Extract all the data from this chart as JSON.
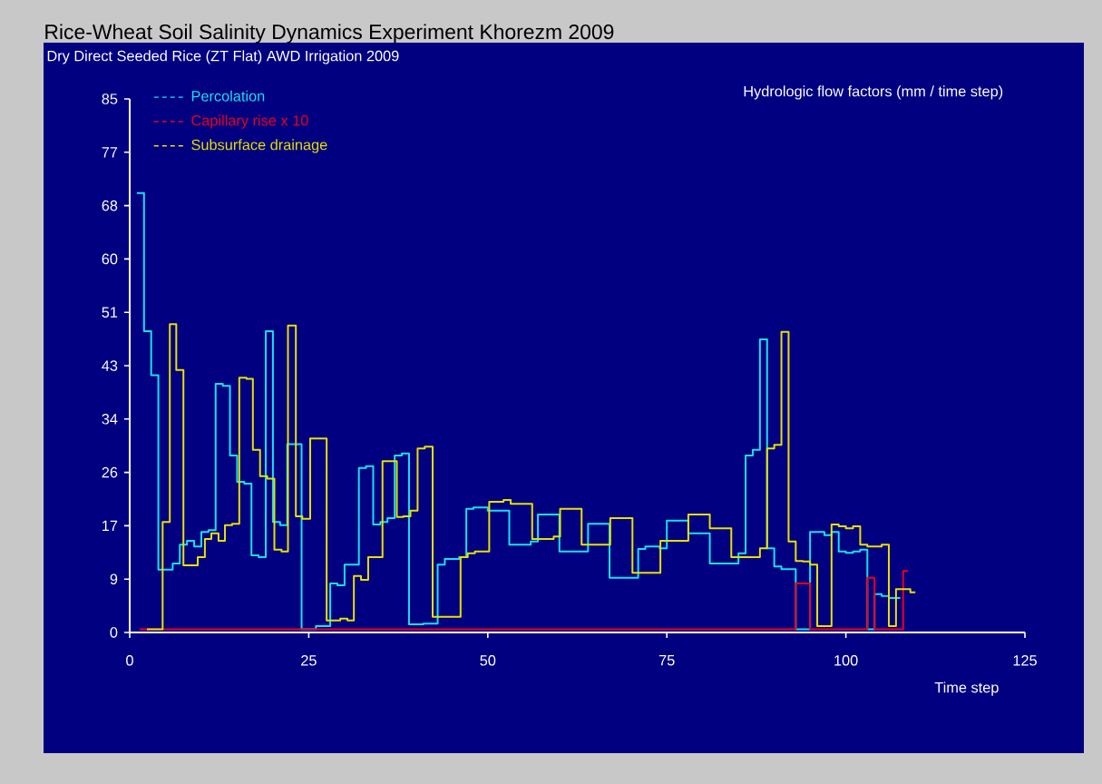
{
  "chart_data": {
    "type": "step",
    "title": "Rice-Wheat Soil Salinity Dynamics Experiment Khorezm 2009",
    "subtitle": "Dry Direct Seeded Rice (ZT Flat) AWD Irrigation 2009",
    "xlabel": "Time step",
    "ylabel": "Hydrologic flow factors (mm / time step)",
    "xlim": [
      0,
      125
    ],
    "xticks": [
      0,
      25,
      50,
      75,
      100,
      125
    ],
    "ylim": [
      0,
      85
    ],
    "yticks": [
      0,
      {
        "value": 8.5,
        "label": "9"
      },
      17,
      {
        "value": 25.5,
        "label": "26"
      },
      34,
      {
        "value": 42.5,
        "label": "43"
      },
      51,
      {
        "value": 59.5,
        "label": "60"
      },
      68,
      {
        "value": 76.5,
        "label": "77"
      },
      85
    ],
    "grid": false,
    "legend": "top left",
    "marker": "none",
    "line_style": "solid",
    "series": [
      {
        "name": "Percolation",
        "color": "#18e0f0",
        "x": [
          1,
          2,
          3,
          4,
          6,
          7,
          8,
          9,
          10,
          11,
          12,
          13,
          14,
          15,
          16,
          17,
          18,
          19,
          20,
          21,
          22,
          24,
          26,
          28,
          29,
          30,
          32,
          33,
          34,
          35,
          36,
          37,
          38,
          39,
          41,
          43,
          44,
          46,
          47,
          48,
          50,
          53,
          56,
          57,
          60,
          64,
          67,
          71,
          72,
          74,
          75,
          78,
          81,
          85,
          86,
          87,
          88,
          89,
          90,
          91,
          93,
          95,
          97,
          98,
          99,
          100,
          101,
          102,
          103,
          104,
          105,
          106,
          107.6
        ],
        "values": [
          70,
          48,
          41,
          10,
          11,
          14,
          14.6,
          13.7,
          16,
          16.3,
          39.6,
          39.3,
          28.2,
          24,
          23.7,
          12.3,
          12,
          48,
          17.6,
          17.1,
          30,
          0.5,
          1,
          7.8,
          7.5,
          10.8,
          26.2,
          26.5,
          17.2,
          17.6,
          18.2,
          28.2,
          28.5,
          1.3,
          1.4,
          10.8,
          11.7,
          12,
          19.7,
          19.9,
          19.4,
          14,
          14.5,
          18.8,
          12.9,
          17.3,
          8.7,
          13.3,
          13.7,
          13.4,
          17.8,
          15.8,
          11,
          12.6,
          28.2,
          29.1,
          46.7,
          13.4,
          10.5,
          10.1,
          0.5,
          16,
          15.5,
          16,
          12.9,
          12.7,
          12.9,
          13.2,
          0.5,
          6.1,
          5.8,
          5.5,
          5.5
        ]
      },
      {
        "name": "Capillary rise x 10",
        "color": "#e8001c",
        "x": [
          1.4,
          93,
          95,
          103,
          104,
          108,
          108.7
        ],
        "values": [
          0.5,
          7.8,
          0.5,
          8.7,
          0.5,
          9.8,
          9.8
        ]
      },
      {
        "name": "Subsurface drainage",
        "color": "#e8e000",
        "x": [
          2.4,
          4.6,
          5.6,
          6.5,
          7.5,
          9.5,
          10.5,
          11.4,
          12.4,
          13.3,
          14.3,
          15.3,
          16.3,
          17.2,
          18.2,
          19.2,
          20.2,
          21.2,
          22.1,
          23.2,
          24.1,
          25.2,
          27.5,
          29.4,
          30.4,
          31.3,
          32.3,
          33.3,
          35.3,
          37.3,
          38.2,
          39.2,
          40.2,
          41.2,
          42.3,
          46.2,
          47.2,
          48.2,
          50.2,
          52.2,
          53.2,
          56.2,
          59.2,
          60.1,
          63.1,
          67.1,
          70.2,
          74.1,
          78,
          81,
          84,
          88,
          89,
          90,
          91,
          92,
          93,
          94,
          95,
          96,
          98,
          99,
          100,
          101,
          102,
          103,
          105,
          106,
          107,
          109,
          109.7
        ],
        "values": [
          0.5,
          17.6,
          49.1,
          41.8,
          10.7,
          12,
          14.9,
          15.8,
          14.6,
          17.1,
          17.3,
          40.6,
          40.4,
          29.1,
          24.9,
          24.5,
          13.2,
          12.9,
          48.9,
          18.5,
          18.1,
          30.9,
          1.9,
          2.2,
          1.9,
          9,
          8.4,
          12,
          27.3,
          18.4,
          18.5,
          19.4,
          29.3,
          29.6,
          2.5,
          12,
          12.6,
          12.9,
          20.8,
          21.1,
          20.5,
          14.9,
          15.3,
          19.7,
          14,
          18.2,
          9.5,
          14.6,
          18.8,
          16.6,
          12,
          13.4,
          29.3,
          29.9,
          47.9,
          14.5,
          11.4,
          11.3,
          10.8,
          1,
          17.2,
          16.9,
          16.6,
          16.9,
          14,
          13.7,
          14,
          1,
          6.9,
          6.4,
          6.4
        ]
      }
    ]
  }
}
